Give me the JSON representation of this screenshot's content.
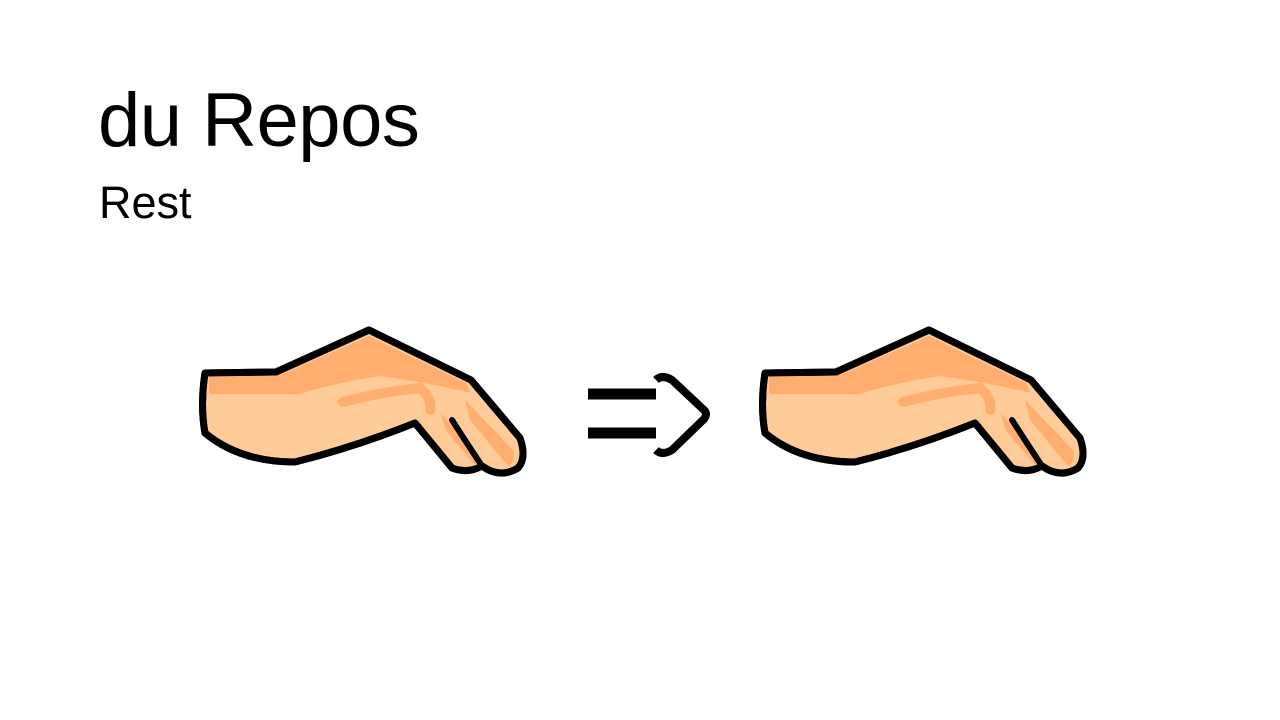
{
  "slide": {
    "title": "du Repos",
    "subtitle": "Rest"
  },
  "illustration": {
    "left_icon": "resting-hand-icon",
    "arrow_icon": "double-line-right-arrow-icon",
    "right_icon": "resting-hand-icon"
  },
  "colors": {
    "background": "#ffffff",
    "text": "#000000",
    "skin_light": "#ffcc99",
    "skin_dark": "#ffae70",
    "outline": "#000000"
  }
}
